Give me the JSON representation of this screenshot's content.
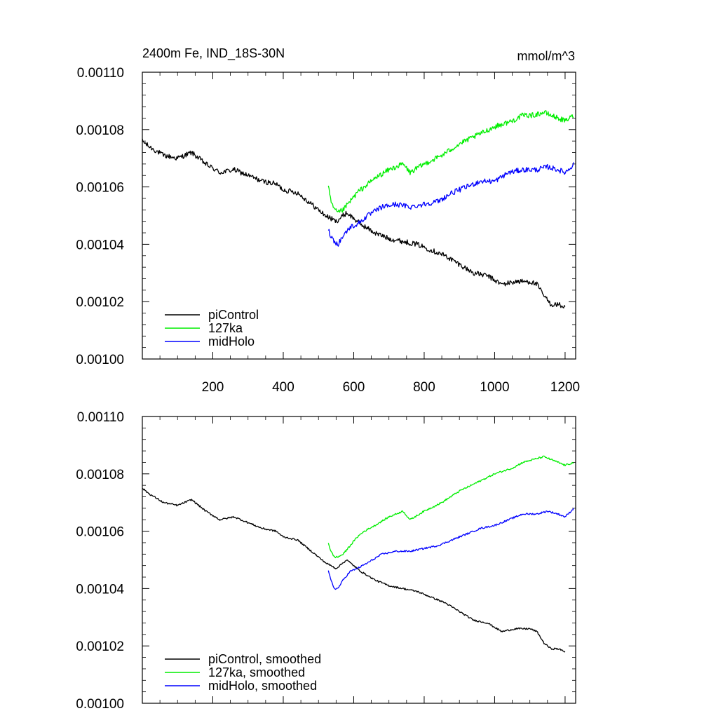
{
  "figure": {
    "title_left": "2400m Fe, IND_18S-30N",
    "title_right": "mmol/m^3"
  },
  "chart_data": [
    {
      "type": "line",
      "panel": "top",
      "title": "2400m Fe, IND_18S-30N",
      "units": "mmol/m^3",
      "xlim": [
        0,
        1230
      ],
      "ylim": [
        0.001,
        0.0011
      ],
      "xticks": [
        200,
        400,
        600,
        800,
        1000,
        1200
      ],
      "xtick_labels": [
        "200",
        "400",
        "600",
        "800",
        "1000",
        "1200"
      ],
      "yticks": [
        0.001,
        0.00102,
        0.00104,
        0.00106,
        0.00108,
        0.0011
      ],
      "ytick_labels": [
        "0.00100",
        "0.00102",
        "0.00104",
        "0.00106",
        "0.00108",
        "0.00110"
      ],
      "legend_position": "bottom-left",
      "series": [
        {
          "name": "piControl",
          "color": "#000000",
          "x": [
            0,
            20,
            60,
            100,
            140,
            180,
            220,
            260,
            300,
            340,
            380,
            400,
            440,
            480,
            520,
            550,
            580,
            620,
            660,
            700,
            740,
            780,
            820,
            860,
            900,
            940,
            980,
            1020,
            1060,
            1100,
            1120,
            1140,
            1160,
            1180,
            1200
          ],
          "y": [
            0.001076,
            0.001074,
            0.001071,
            0.00107,
            0.001072,
            0.001068,
            0.001065,
            0.001066,
            0.001064,
            0.001062,
            0.001061,
            0.001059,
            0.001058,
            0.001054,
            0.00105,
            0.001048,
            0.001051,
            0.001047,
            0.001044,
            0.001042,
            0.001041,
            0.00104,
            0.001038,
            0.001036,
            0.001033,
            0.00103,
            0.001029,
            0.001026,
            0.001027,
            0.001027,
            0.001026,
            0.001022,
            0.001019,
            0.001019,
            0.001018
          ]
        },
        {
          "name": "127ka",
          "color": "#00ee00",
          "x": [
            528,
            535,
            545,
            555,
            570,
            590,
            610,
            630,
            660,
            700,
            740,
            760,
            800,
            850,
            900,
            950,
            1000,
            1050,
            1080,
            1110,
            1140,
            1160,
            1180,
            1200,
            1225
          ],
          "y": [
            0.00106,
            0.001055,
            0.001052,
            0.001051,
            0.001052,
            0.001055,
            0.001058,
            0.00106,
            0.001063,
            0.001066,
            0.001068,
            0.001065,
            0.001068,
            0.001071,
            0.001075,
            0.001078,
            0.001081,
            0.001083,
            0.001085,
            0.001085,
            0.001086,
            0.001085,
            0.001084,
            0.001083,
            0.001085
          ]
        },
        {
          "name": "midHolo",
          "color": "#0000ff",
          "x": [
            528,
            535,
            545,
            555,
            570,
            590,
            610,
            640,
            680,
            720,
            760,
            800,
            840,
            880,
            920,
            960,
            1000,
            1040,
            1080,
            1120,
            1150,
            1180,
            1200,
            1225
          ],
          "y": [
            0.001045,
            0.001043,
            0.001041,
            0.00104,
            0.001043,
            0.001046,
            0.001047,
            0.00105,
            0.001053,
            0.001054,
            0.001053,
            0.001054,
            0.001055,
            0.001058,
            0.00106,
            0.001062,
            0.001062,
            0.001065,
            0.001066,
            0.001066,
            0.001067,
            0.001066,
            0.001065,
            0.001068
          ]
        }
      ]
    },
    {
      "type": "line",
      "panel": "bottom",
      "xlim": [
        0,
        1230
      ],
      "ylim": [
        0.001,
        0.0011
      ],
      "yticks": [
        0.001,
        0.00102,
        0.00104,
        0.00106,
        0.00108,
        0.0011
      ],
      "ytick_labels": [
        "0.00100",
        "0.00102",
        "0.00104",
        "0.00106",
        "0.00108",
        "0.00110"
      ],
      "legend_position": "bottom-left",
      "series": [
        {
          "name": "piControl, smoothed",
          "color": "#000000",
          "x": [
            0,
            20,
            60,
            100,
            140,
            180,
            220,
            260,
            300,
            340,
            380,
            400,
            440,
            480,
            520,
            550,
            580,
            620,
            660,
            700,
            740,
            780,
            820,
            860,
            900,
            940,
            980,
            1020,
            1060,
            1100,
            1120,
            1140,
            1160,
            1180,
            1200
          ],
          "y": [
            0.001075,
            0.001073,
            0.00107,
            0.001069,
            0.001071,
            0.001067,
            0.001064,
            0.001065,
            0.001063,
            0.001061,
            0.00106,
            0.001058,
            0.001057,
            0.001053,
            0.001049,
            0.001047,
            0.00105,
            0.001046,
            0.001043,
            0.001041,
            0.00104,
            0.001039,
            0.001037,
            0.001035,
            0.001032,
            0.001029,
            0.001028,
            0.001025,
            0.001026,
            0.001026,
            0.001025,
            0.001021,
            0.001019,
            0.001019,
            0.001018
          ]
        },
        {
          "name": "127ka, smoothed",
          "color": "#00ee00",
          "x": [
            528,
            535,
            545,
            555,
            570,
            590,
            610,
            630,
            660,
            700,
            740,
            760,
            800,
            850,
            900,
            950,
            1000,
            1050,
            1080,
            1110,
            1140,
            1160,
            1180,
            1200,
            1225
          ],
          "y": [
            0.001056,
            0.001053,
            0.001051,
            0.001051,
            0.001052,
            0.001055,
            0.001058,
            0.00106,
            0.001062,
            0.001065,
            0.001067,
            0.001064,
            0.001067,
            0.00107,
            0.001074,
            0.001077,
            0.00108,
            0.001082,
            0.001084,
            0.001085,
            0.001086,
            0.001085,
            0.001084,
            0.001083,
            0.001084
          ]
        },
        {
          "name": "midHolo, smoothed",
          "color": "#0000ff",
          "x": [
            528,
            535,
            545,
            555,
            570,
            590,
            610,
            640,
            680,
            720,
            760,
            800,
            840,
            880,
            920,
            960,
            1000,
            1040,
            1080,
            1120,
            1150,
            1180,
            1200,
            1225
          ],
          "y": [
            0.001046,
            0.001043,
            0.00104,
            0.00104,
            0.001043,
            0.001046,
            0.001047,
            0.001049,
            0.001052,
            0.001053,
            0.001053,
            0.001054,
            0.001055,
            0.001057,
            0.001059,
            0.001061,
            0.001062,
            0.001064,
            0.001066,
            0.001066,
            0.001067,
            0.001066,
            0.001065,
            0.001068
          ]
        }
      ]
    }
  ]
}
